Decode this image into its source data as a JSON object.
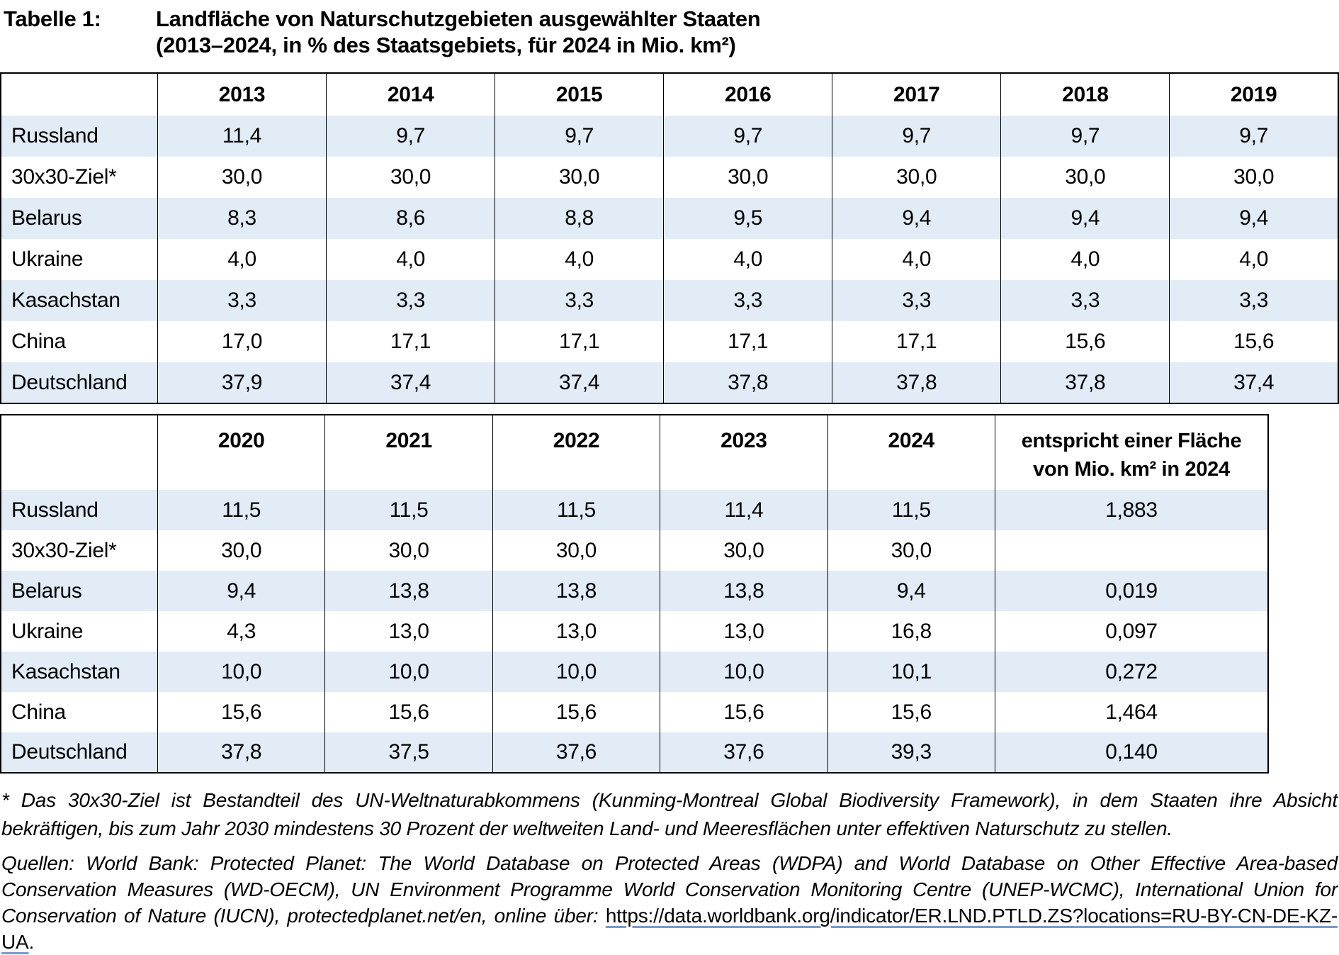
{
  "title": {
    "label": "Tabelle 1:",
    "line1": "Landfläche von Naturschutzgebieten ausgewählter Staaten",
    "line2": "(2013–2024, in % des Staatsgebiets, für 2024 in Mio. km²)"
  },
  "table1": {
    "columns": [
      "",
      "2013",
      "2014",
      "2015",
      "2016",
      "2017",
      "2018",
      "2019"
    ],
    "rows": [
      {
        "label": "Russland",
        "values": [
          "11,4",
          "9,7",
          "9,7",
          "9,7",
          "9,7",
          "9,7",
          "9,7"
        ]
      },
      {
        "label": "30x30-Ziel*",
        "values": [
          "30,0",
          "30,0",
          "30,0",
          "30,0",
          "30,0",
          "30,0",
          "30,0"
        ]
      },
      {
        "label": "Belarus",
        "values": [
          "8,3",
          "8,6",
          "8,8",
          "9,5",
          "9,4",
          "9,4",
          "9,4"
        ]
      },
      {
        "label": "Ukraine",
        "values": [
          "4,0",
          "4,0",
          "4,0",
          "4,0",
          "4,0",
          "4,0",
          "4,0"
        ]
      },
      {
        "label": "Kasachstan",
        "values": [
          "3,3",
          "3,3",
          "3,3",
          "3,3",
          "3,3",
          "3,3",
          "3,3"
        ]
      },
      {
        "label": "China",
        "values": [
          "17,0",
          "17,1",
          "17,1",
          "17,1",
          "17,1",
          "15,6",
          "15,6"
        ]
      },
      {
        "label": "Deutschland",
        "values": [
          "37,9",
          "37,4",
          "37,4",
          "37,8",
          "37,8",
          "37,8",
          "37,4"
        ]
      }
    ]
  },
  "table2": {
    "columns": [
      "",
      "2020",
      "2021",
      "2022",
      "2023",
      "2024"
    ],
    "area_header": [
      "entspricht einer Fläche",
      "von Mio. km² in 2024"
    ],
    "rows": [
      {
        "label": "Russland",
        "values": [
          "11,5",
          "11,5",
          "11,5",
          "11,4",
          "11,5"
        ],
        "area": "1,883"
      },
      {
        "label": "30x30-Ziel*",
        "values": [
          "30,0",
          "30,0",
          "30,0",
          "30,0",
          "30,0"
        ],
        "area": ""
      },
      {
        "label": "Belarus",
        "values": [
          "9,4",
          "13,8",
          "13,8",
          "13,8",
          "9,4"
        ],
        "area": "0,019"
      },
      {
        "label": "Ukraine",
        "values": [
          "4,3",
          "13,0",
          "13,0",
          "13,0",
          "16,8"
        ],
        "area": "0,097"
      },
      {
        "label": "Kasachstan",
        "values": [
          "10,0",
          "10,0",
          "10,0",
          "10,0",
          "10,1"
        ],
        "area": "0,272"
      },
      {
        "label": "China",
        "values": [
          "15,6",
          "15,6",
          "15,6",
          "15,6",
          "15,6"
        ],
        "area": "1,464"
      },
      {
        "label": "Deutschland",
        "values": [
          "37,8",
          "37,5",
          "37,6",
          "37,6",
          "39,3"
        ],
        "area": "0,140"
      }
    ]
  },
  "footnote": "* Das 30x30-Ziel ist Bestandteil des UN-Weltnaturabkommens (Kunming-Montreal Global Biodiversity Framework), in dem Staaten ihre Absicht bekräftigen, bis zum Jahr 2030 mindestens 30 Prozent der weltweiten Land- und Meeresflächen unter effektiven Naturschutz zu stellen.",
  "sources": {
    "prefix": "Quellen: World Bank: Protected Planet: The World Database on Protected Areas (WDPA) and World Database on Other Effective Area-based Conservation Measures (WD-OECM), UN Environment Programme World Conservation Monitoring Centre (UNEP-WCMC), International Union for Conservation of Nature (IUCN), protectedplanet.net/en, online über: ",
    "link": "https://data.worldbank.org/indicator/ER.LND.PTLD.ZS?locations=RU-BY-CN-DE-KZ-UA",
    "suffix": "."
  },
  "colors": {
    "row_alt": "#e2ecf7",
    "table_border": "#000000",
    "link_underline": "#7a9cc8"
  }
}
